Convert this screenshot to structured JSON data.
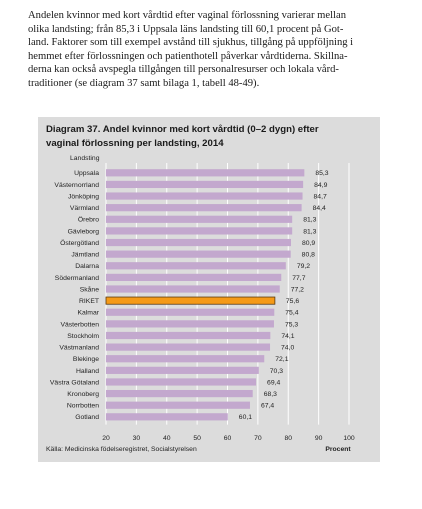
{
  "intro_lines": [
    "Andelen kvinnor med kort vårdtid efter vaginal förlossning varierar mellan",
    "olika landsting; från 85,3 i Uppsala läns landsting till 60,1 procent på Got-",
    "land. Faktorer som till exempel avstånd till sjukhus, tillgång på uppföljning i",
    "hemmet efter förlossningen och patienthotell påverkar vårdtiderna. Skillna-",
    "derna kan också avspegla tillgången till personalresurser och lokala vård-",
    "traditioner (se diagram 37 samt bilaga 1, tabell 48-49)."
  ],
  "chart_data": {
    "type": "bar",
    "orientation": "horizontal",
    "title_lines": [
      "Diagram 37. Andel kvinnor med kort vårdtid (0–2 dygn) efter",
      "vaginal förlossning per landsting, 2014"
    ],
    "category_axis_label": "Landsting",
    "xlabel": "Procent",
    "xlim": [
      20,
      100
    ],
    "xticks": [
      "20",
      "30",
      "40",
      "50",
      "60",
      "70",
      "80",
      "90",
      "100"
    ],
    "grid": "vertical",
    "categories": [
      "Uppsala",
      "Västernorrland",
      "Jönköping",
      "Värmland",
      "Örebro",
      "Gävleborg",
      "Östergötland",
      "Jämtland",
      "Dalarna",
      "Södermanland",
      "Skåne",
      "RIKET",
      "Kalmar",
      "Västerbotten",
      "Stockholm",
      "Västmanland",
      "Blekinge",
      "Halland",
      "Västra Götaland",
      "Kronoberg",
      "Norrbotten",
      "Gotland"
    ],
    "values": [
      85.3,
      84.9,
      84.7,
      84.4,
      81.3,
      81.3,
      80.9,
      80.8,
      79.2,
      77.7,
      77.2,
      75.6,
      75.4,
      75.3,
      74.1,
      74.0,
      72.1,
      70.3,
      69.4,
      68.3,
      67.4,
      60.1
    ],
    "value_labels": [
      "85,3",
      "84,9",
      "84,7",
      "84,4",
      "81,3",
      "81,3",
      "80,9",
      "80,8",
      "79,2",
      "77,7",
      "77,2",
      "75,6",
      "75,4",
      "75,3",
      "74,1",
      "74,0",
      "72,1",
      "70,3",
      "69,4",
      "68,3",
      "67,4",
      "60,1"
    ],
    "highlight": "RIKET",
    "colors": {
      "bar": "#c3a8ce",
      "highlight": "#f59a17",
      "highlight_border": "#5a3a10",
      "grid": "#ffffff",
      "panel": "#dcdcdc"
    },
    "source": "Källa: Medicinska födelseregistret, Socialstyrelsen"
  }
}
